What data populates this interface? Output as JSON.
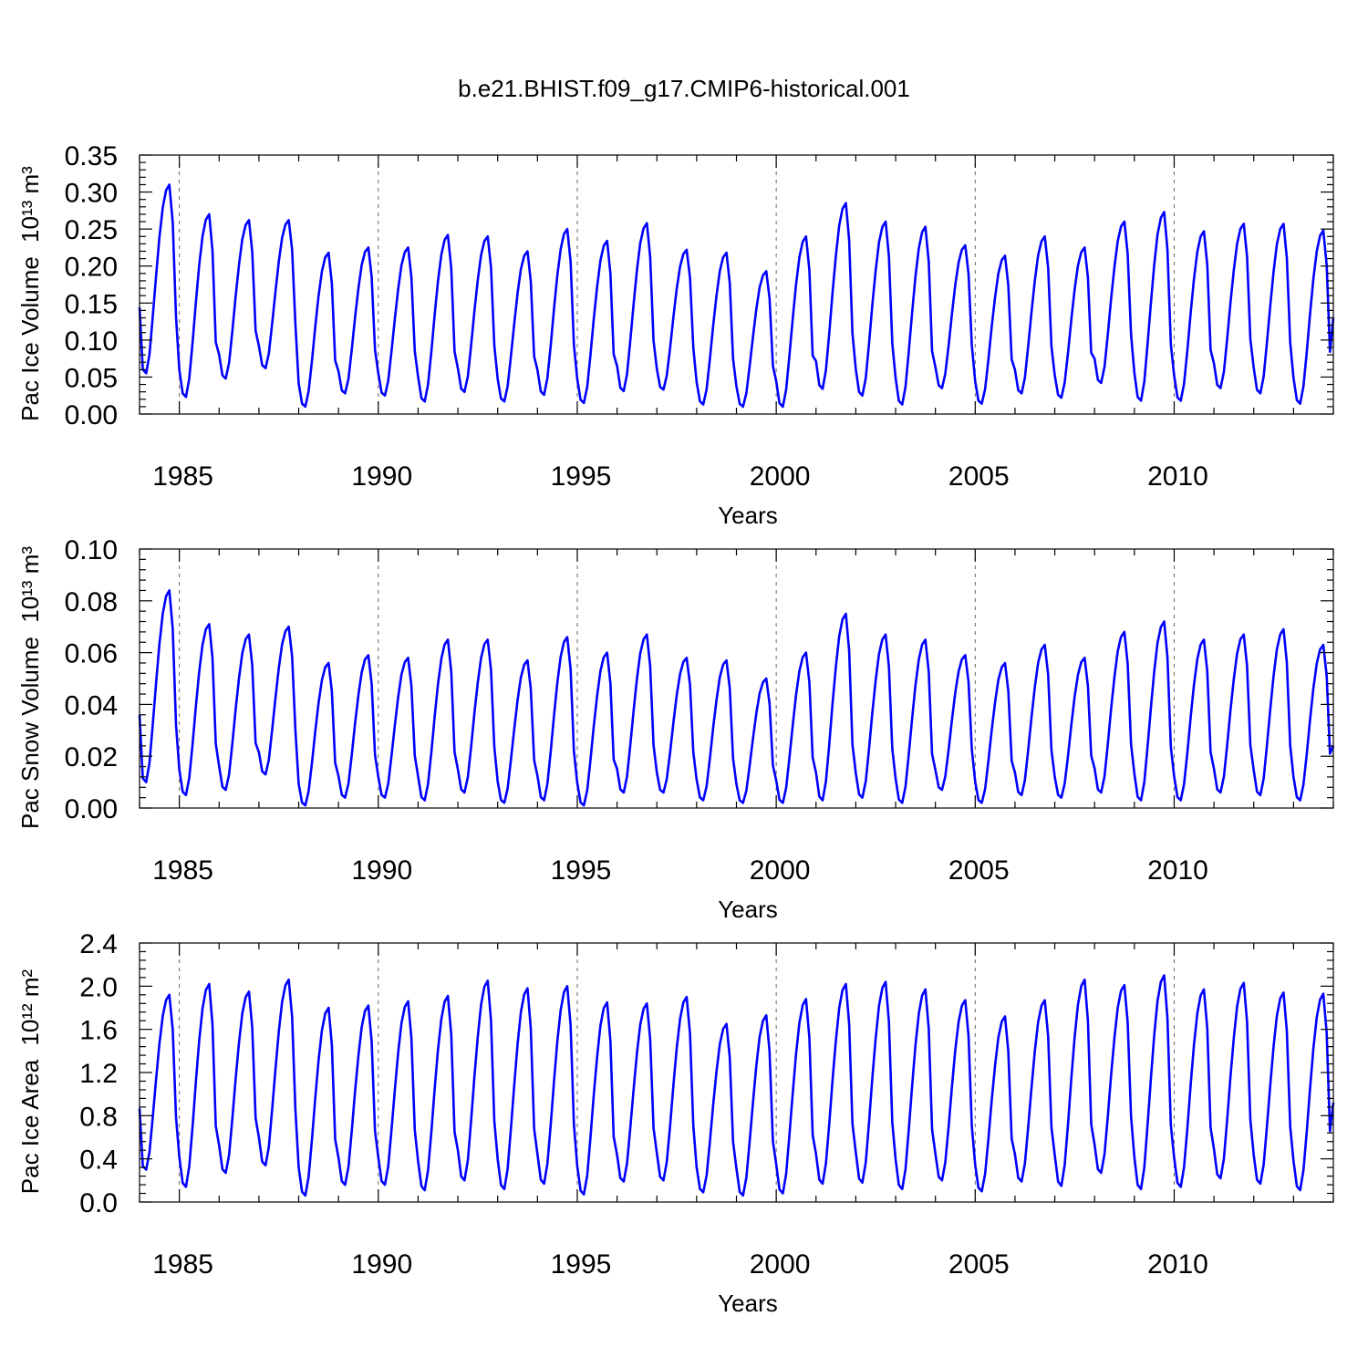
{
  "figure": {
    "title": "b.e21.BHIST.f09_g17.CMIP6-historical.001"
  },
  "colors": {
    "series": "#0000ff",
    "reference_lines": "#666666"
  },
  "chart_data": [
    {
      "type": "line",
      "id": "ice-volume",
      "ylabel": "Pac Ice Volume",
      "ylabel_unit": "10¹³ m³",
      "xlabel": "Years",
      "xlim": [
        1984.0,
        2014.0
      ],
      "ylim": [
        0.0,
        0.35
      ],
      "yticks": [
        "0.00",
        "0.05",
        "0.10",
        "0.15",
        "0.20",
        "0.25",
        "0.30",
        "0.35"
      ],
      "xticks": [
        "1985",
        "1990",
        "1995",
        "2000",
        "2005",
        "2010"
      ],
      "x_reference_lines": [
        1985,
        1990,
        1995,
        2000,
        2005,
        2010
      ],
      "series": [
        {
          "x_start": 1984.0,
          "x_step_years": 0.08333,
          "annual_min": [
            0.055,
            0.023,
            0.048,
            0.062,
            0.01,
            0.028,
            0.025,
            0.017,
            0.03,
            0.017,
            0.026,
            0.015,
            0.031,
            0.033,
            0.013,
            0.01,
            0.01,
            0.034,
            0.025,
            0.013,
            0.035,
            0.014,
            0.028,
            0.022,
            0.042,
            0.018,
            0.018,
            0.035,
            0.028,
            0.014
          ],
          "annual_max": [
            0.31,
            0.27,
            0.262,
            0.262,
            0.218,
            0.225,
            0.225,
            0.242,
            0.24,
            0.22,
            0.25,
            0.234,
            0.258,
            0.222,
            0.218,
            0.193,
            0.24,
            0.285,
            0.26,
            0.253,
            0.228,
            0.214,
            0.24,
            0.225,
            0.26,
            0.273,
            0.247,
            0.257,
            0.257,
            0.248
          ],
          "end_value": 0.13
        }
      ]
    },
    {
      "type": "line",
      "id": "snow-volume",
      "ylabel": "Pac Snow Volume",
      "ylabel_unit": "10¹³ m³",
      "xlabel": "Years",
      "xlim": [
        1984.0,
        2014.0
      ],
      "ylim": [
        0.0,
        0.1
      ],
      "yticks": [
        "0.00",
        "0.02",
        "0.04",
        "0.06",
        "0.08",
        "0.10"
      ],
      "xticks": [
        "1985",
        "1990",
        "1995",
        "2000",
        "2005",
        "2010"
      ],
      "x_reference_lines": [
        1985,
        1990,
        1995,
        2000,
        2005,
        2010
      ],
      "series": [
        {
          "x_start": 1984.0,
          "x_step_years": 0.08333,
          "annual_min": [
            0.01,
            0.005,
            0.007,
            0.013,
            0.001,
            0.004,
            0.004,
            0.003,
            0.006,
            0.002,
            0.003,
            0.001,
            0.006,
            0.006,
            0.003,
            0.002,
            0.002,
            0.003,
            0.004,
            0.002,
            0.007,
            0.002,
            0.005,
            0.004,
            0.006,
            0.003,
            0.003,
            0.006,
            0.005,
            0.003
          ],
          "annual_max": [
            0.084,
            0.071,
            0.067,
            0.07,
            0.056,
            0.059,
            0.058,
            0.065,
            0.065,
            0.057,
            0.066,
            0.06,
            0.067,
            0.058,
            0.057,
            0.05,
            0.06,
            0.075,
            0.067,
            0.065,
            0.059,
            0.056,
            0.063,
            0.058,
            0.068,
            0.072,
            0.065,
            0.067,
            0.069,
            0.063
          ],
          "end_value": 0.024
        }
      ]
    },
    {
      "type": "line",
      "id": "ice-area",
      "ylabel": "Pac Ice Area",
      "ylabel_unit": "10¹² m²",
      "xlabel": "Years",
      "xlim": [
        1984.0,
        2014.0
      ],
      "ylim": [
        0.0,
        2.4
      ],
      "yticks": [
        "0.0",
        "0.4",
        "0.8",
        "1.2",
        "1.6",
        "2.0",
        "2.4"
      ],
      "xticks": [
        "1985",
        "1990",
        "1995",
        "2000",
        "2005",
        "2010"
      ],
      "x_reference_lines": [
        1985,
        1990,
        1995,
        2000,
        2005,
        2010
      ],
      "series": [
        {
          "x_start": 1984.0,
          "x_step_years": 0.08333,
          "annual_min": [
            0.3,
            0.14,
            0.27,
            0.34,
            0.06,
            0.16,
            0.16,
            0.11,
            0.2,
            0.12,
            0.17,
            0.07,
            0.19,
            0.2,
            0.09,
            0.06,
            0.08,
            0.17,
            0.18,
            0.12,
            0.2,
            0.1,
            0.19,
            0.15,
            0.27,
            0.12,
            0.14,
            0.22,
            0.17,
            0.11
          ],
          "annual_max": [
            1.92,
            2.02,
            1.95,
            2.06,
            1.8,
            1.82,
            1.86,
            1.91,
            2.05,
            1.98,
            2.0,
            1.85,
            1.84,
            1.9,
            1.65,
            1.73,
            1.88,
            2.02,
            2.04,
            1.97,
            1.87,
            1.72,
            1.87,
            2.06,
            2.01,
            2.1,
            1.97,
            2.03,
            1.94,
            1.93
          ],
          "end_value": 0.92
        }
      ]
    }
  ]
}
